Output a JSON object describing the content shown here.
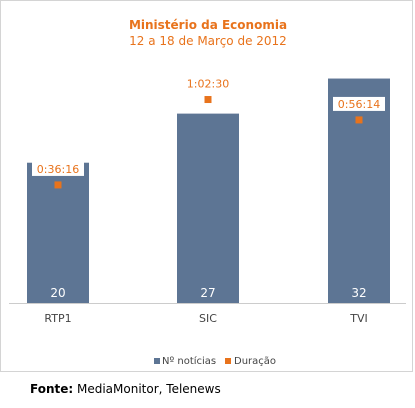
{
  "chart_data": {
    "type": "bar",
    "title": "Ministério da Economia",
    "subtitle": "12 a 18 de Março de 2012",
    "categories": [
      "RTP1",
      "SIC",
      "TVI"
    ],
    "series": [
      {
        "name": "Nº notícias",
        "values": [
          20,
          27,
          32
        ],
        "color": "#5d7594"
      },
      {
        "name": "Duração",
        "values": [
          "0:36:16",
          "1:02:30",
          "0:56:14"
        ],
        "seconds": [
          2176,
          3750,
          3374
        ],
        "color": "#e8731c"
      }
    ],
    "legend_position": "bottom",
    "grid": false
  },
  "source": {
    "label": "Fonte:",
    "text": " MediaMonitor, Telenews"
  }
}
